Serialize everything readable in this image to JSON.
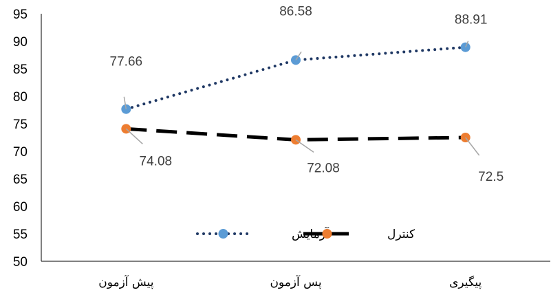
{
  "chart_data": {
    "type": "line",
    "categories": [
      "پیش آزمون",
      "پس آزمون",
      "پیگیری"
    ],
    "ylim": [
      50,
      95
    ],
    "y_ticks": [
      50,
      55,
      60,
      65,
      70,
      75,
      80,
      85,
      90,
      95
    ],
    "y_tick_labels": [
      "50",
      "55",
      "60",
      "65",
      "70",
      "75",
      "80",
      "85",
      "90",
      "95"
    ],
    "grid": false,
    "legend_position": "inside-bottom-center",
    "series": [
      {
        "name": "آزمایش",
        "values": [
          77.66,
          86.58,
          88.91
        ],
        "labels": [
          "77.66",
          "86.58",
          "88.91"
        ],
        "line_color": "#1f3864",
        "marker_color": "#5b9bd5",
        "line_style": "dotted"
      },
      {
        "name": "کنترل",
        "values": [
          74.08,
          72.08,
          72.5
        ],
        "labels": [
          "74.08",
          "72.08",
          "72.5"
        ],
        "line_color": "#000000",
        "marker_color": "#ed7d31",
        "line_style": "dashed"
      }
    ]
  }
}
